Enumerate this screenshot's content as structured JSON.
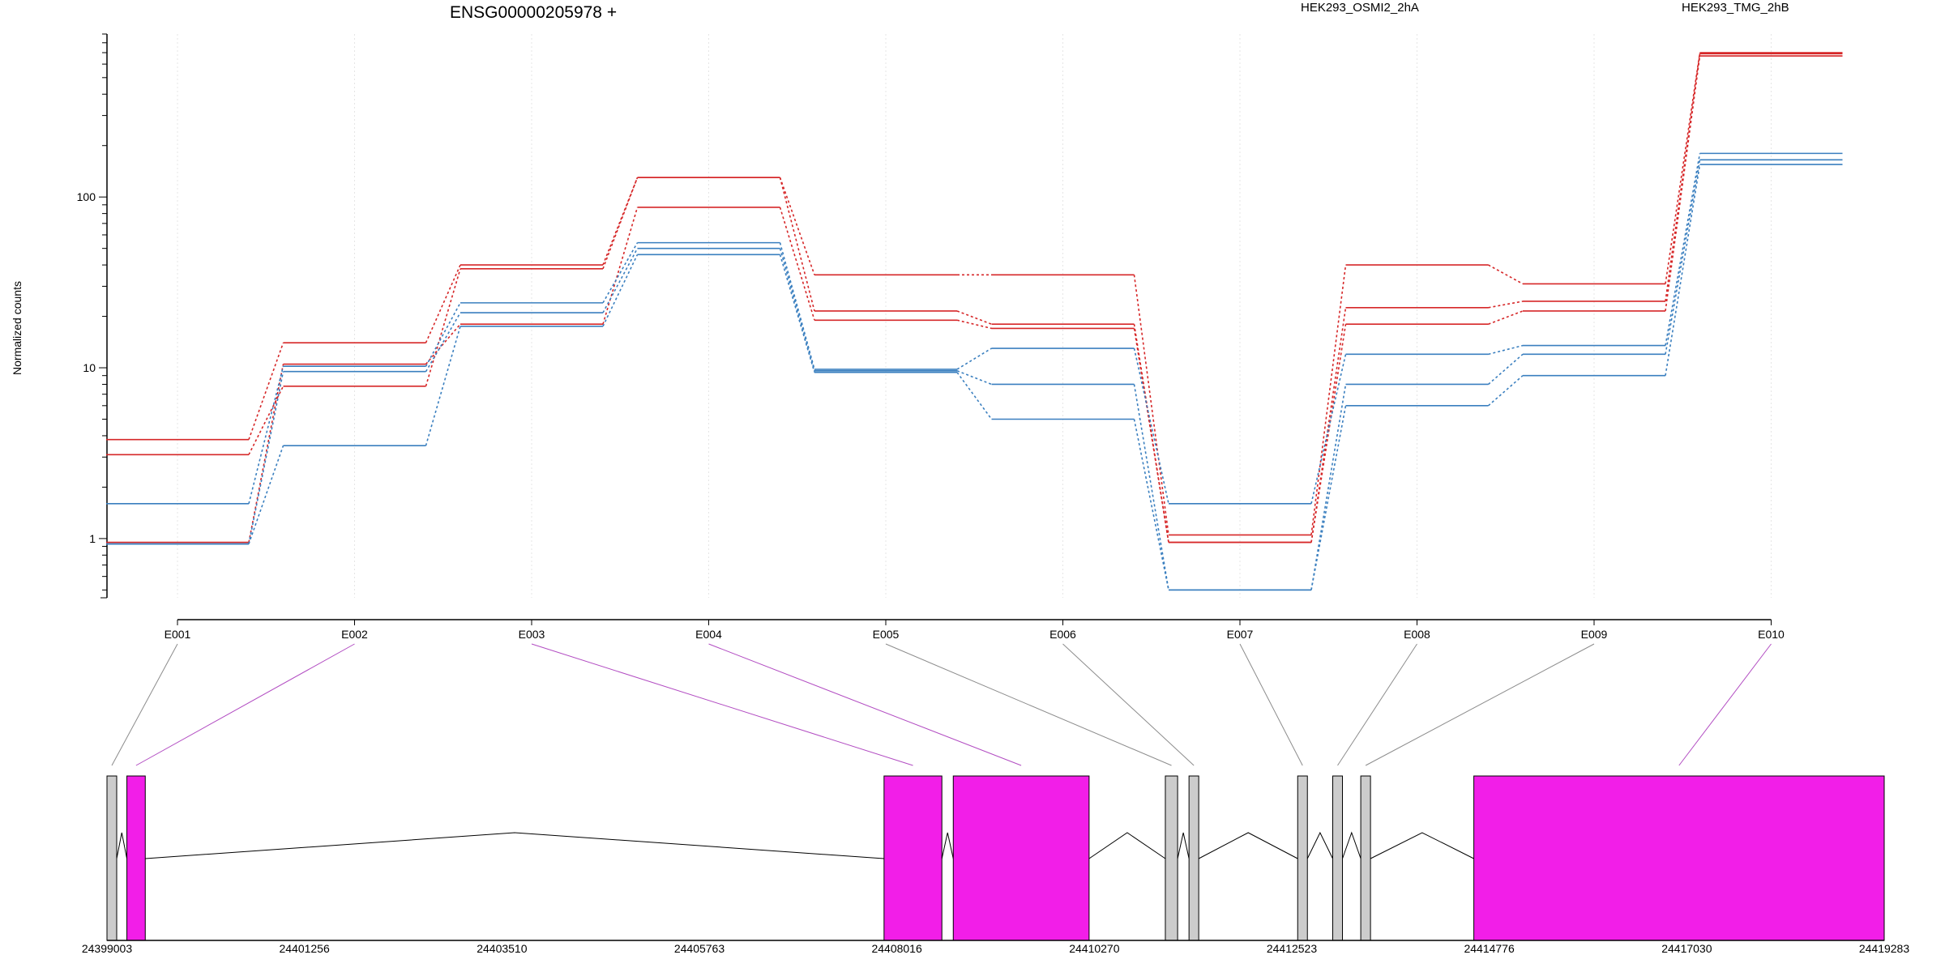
{
  "chart_data": {
    "type": "line",
    "title": "ENSG00000205978 +",
    "ylabel": "Normalized counts",
    "yscale": "log",
    "ylim": [
      0.45,
      900
    ],
    "yticks": [
      {
        "v": 1,
        "label": "1"
      },
      {
        "v": 10,
        "label": "10"
      },
      {
        "v": 100,
        "label": "100"
      }
    ],
    "categories": [
      "E001",
      "E002",
      "E003",
      "E004",
      "E005",
      "E006",
      "E007",
      "E008",
      "E009",
      "E010"
    ],
    "legend_placement": "top",
    "series": [
      {
        "name": "HEK293_OSMI2_2hA",
        "color": "#d62728",
        "group": "OSMI2",
        "values": [
          3.8,
          14,
          40,
          130,
          35,
          35,
          1.05,
          40,
          31,
          700
        ]
      },
      {
        "name": "",
        "color": "#d62728",
        "group": "OSMI2",
        "values": [
          3.1,
          7.8,
          38,
          130,
          21.5,
          18,
          0.95,
          22.5,
          24.5,
          690
        ]
      },
      {
        "name": "",
        "color": "#d62728",
        "group": "OSMI2",
        "values": [
          0.95,
          10.5,
          18,
          87,
          19,
          17,
          0.95,
          18,
          21.5,
          670
        ]
      },
      {
        "name": "HEK293_TMG_2hB",
        "color": "#3a7fbf",
        "group": "TMG",
        "values": [
          1.6,
          10.2,
          24,
          54,
          9.8,
          13,
          1.6,
          12,
          13.5,
          180
        ]
      },
      {
        "name": "",
        "color": "#3a7fbf",
        "group": "TMG",
        "values": [
          0.93,
          9.5,
          21,
          50,
          9.6,
          8,
          0.5,
          8,
          12,
          165
        ]
      },
      {
        "name": "",
        "color": "#3a7fbf",
        "group": "TMG",
        "values": [
          0.93,
          3.5,
          17.5,
          46,
          9.4,
          5,
          0.5,
          6,
          9,
          155
        ]
      }
    ],
    "gene_model": {
      "xticks": [
        {
          "v": 24399003,
          "label": "24399003"
        },
        {
          "v": 24401256,
          "label": "24401256"
        },
        {
          "v": 24403510,
          "label": "24403510"
        },
        {
          "v": 24405763,
          "label": "24405763"
        },
        {
          "v": 24408016,
          "label": "24408016"
        },
        {
          "v": 24410270,
          "label": "24410270"
        },
        {
          "v": 24412523,
          "label": "24412523"
        },
        {
          "v": 24414776,
          "label": "24414776"
        },
        {
          "v": 24417030,
          "label": "24417030"
        },
        {
          "v": 24419283,
          "label": "24419283"
        }
      ],
      "xlim": [
        24399003,
        24419283
      ],
      "exons": [
        {
          "id": "E001",
          "start": 24399003,
          "end": 24399090,
          "highlight": false
        },
        {
          "id": "E002",
          "start": 24399230,
          "end": 24399440,
          "highlight": true
        },
        {
          "id": "E003",
          "start": 24407870,
          "end": 24408530,
          "highlight": true
        },
        {
          "id": "E004",
          "start": 24408660,
          "end": 24410210,
          "highlight": true
        },
        {
          "id": "E005",
          "start": 24411080,
          "end": 24411220,
          "highlight": false
        },
        {
          "id": "E006",
          "start": 24411350,
          "end": 24411440,
          "highlight": false
        },
        {
          "id": "E007",
          "start": 24412590,
          "end": 24412680,
          "highlight": false
        },
        {
          "id": "E008",
          "start": 24412990,
          "end": 24413090,
          "highlight": false
        },
        {
          "id": "E009",
          "start": 24413310,
          "end": 24413410,
          "highlight": false
        },
        {
          "id": "E010",
          "start": 24414600,
          "end": 24419283,
          "highlight": true
        }
      ],
      "highlight_color": "#f21ee8",
      "exon_color": "#cccccc"
    }
  }
}
